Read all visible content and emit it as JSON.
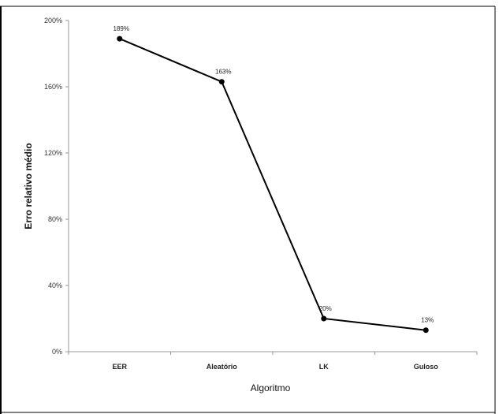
{
  "chart_data": {
    "type": "line",
    "title": "",
    "xlabel": "Algoritmo",
    "ylabel": "Erro relativo médio",
    "categories": [
      "EER",
      "Aleatório",
      "LK",
      "Guloso"
    ],
    "series": [
      {
        "values": [
          189,
          163,
          20,
          13
        ],
        "labels": [
          "189%",
          "163%",
          "20%",
          "13%"
        ],
        "color": "#000000"
      }
    ],
    "ylim": [
      0,
      200
    ],
    "yticks": [
      0,
      40,
      80,
      120,
      160,
      200
    ],
    "ytick_labels": [
      "0%",
      "40%",
      "80%",
      "120%",
      "160%",
      "200%"
    ],
    "grid": false,
    "legend": "none"
  }
}
